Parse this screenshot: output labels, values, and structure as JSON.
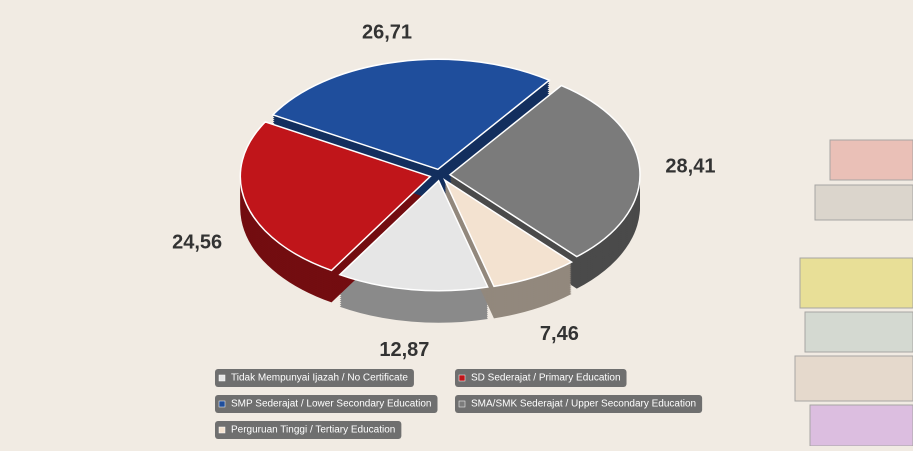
{
  "chart_data": {
    "type": "pie",
    "categories": [
      "Tidak Mempunyai Ijazah / No Certificate",
      "SD Sederajat / Primary Education",
      "SMP Sederajat / Lower Secondary Education",
      "SMA/SMK Sederajat / Upper Secondary Education",
      "Perguruan Tinggi / Tertiary Education"
    ],
    "values": [
      12.87,
      24.56,
      26.71,
      28.41,
      7.46
    ],
    "value_labels": [
      "12,87",
      "24,56",
      "26,71",
      "28,41",
      "7,46"
    ],
    "colors": [
      "#e6e6e6",
      "#c0151a",
      "#1f4e9c",
      "#7b7b7b",
      "#f3e2d0"
    ]
  }
}
